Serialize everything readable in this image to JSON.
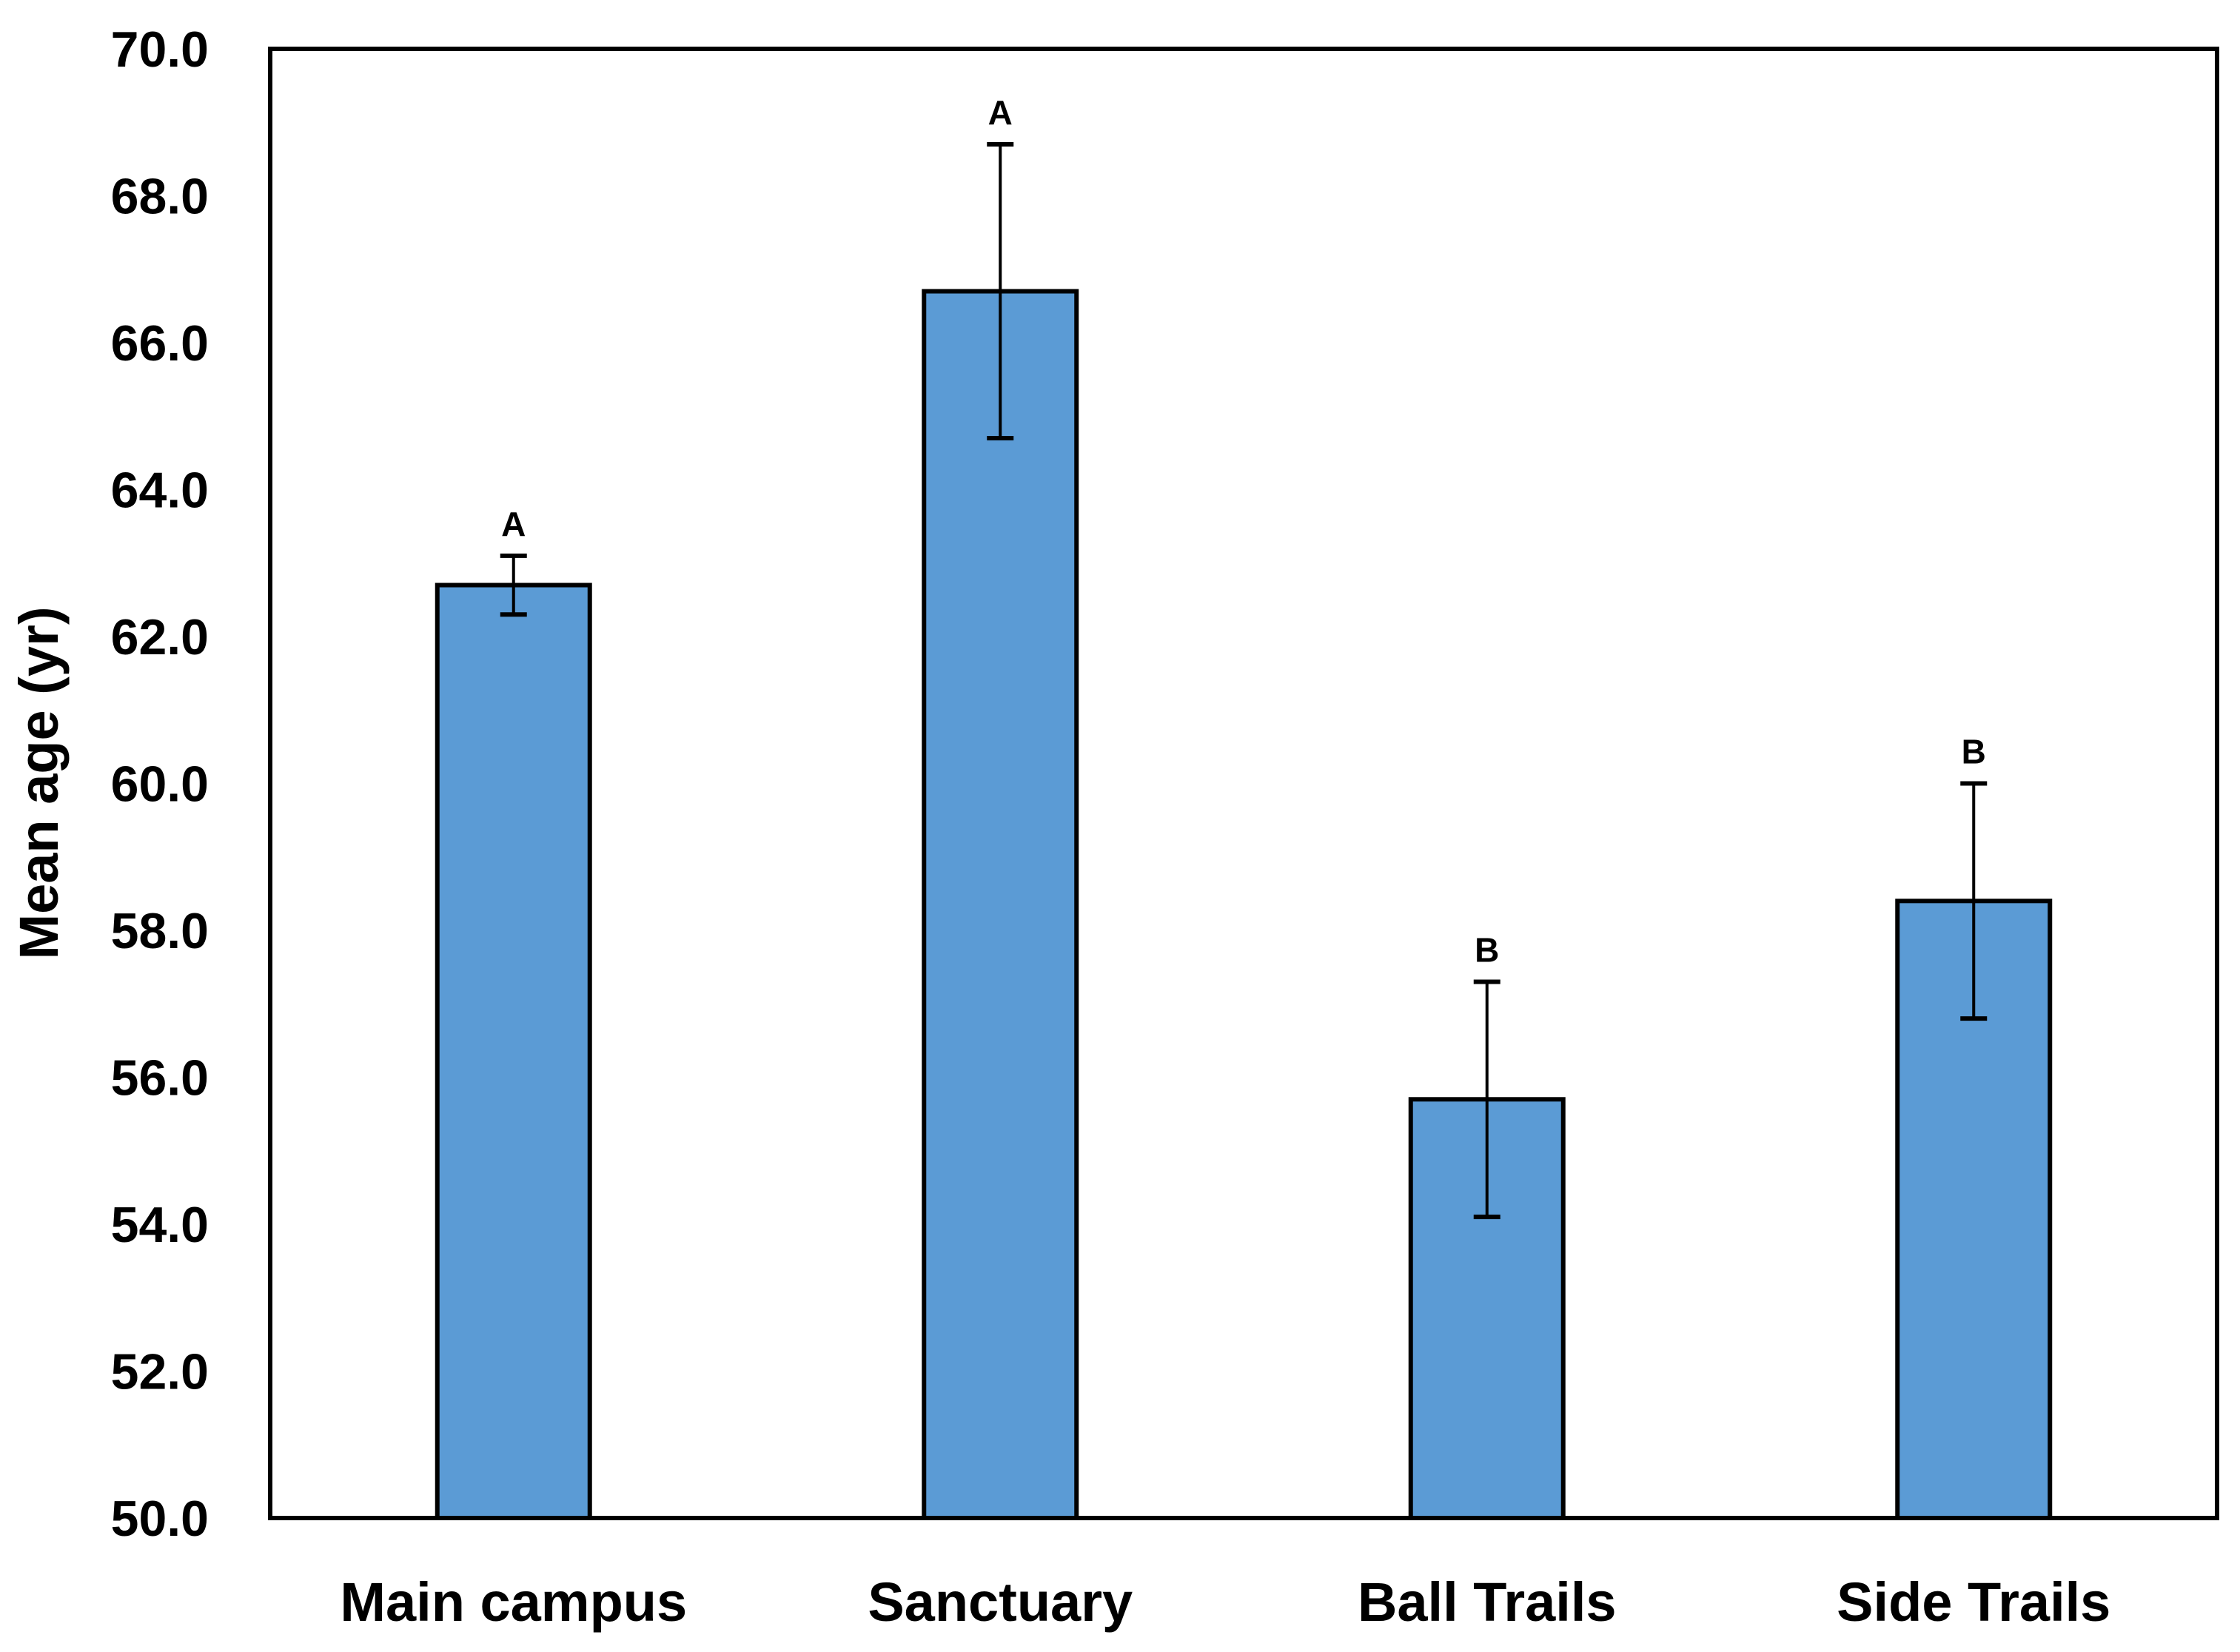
{
  "chart_data": {
    "type": "bar",
    "title": "",
    "xlabel": "",
    "ylabel": "Mean age  (yr)",
    "ylim": [
      50,
      70
    ],
    "yticks": [
      "50.0",
      "52.0",
      "54.0",
      "56.0",
      "58.0",
      "60.0",
      "62.0",
      "64.0",
      "66.0",
      "68.0",
      "70.0"
    ],
    "categories": [
      "Main campus",
      "Sanctuary",
      "Ball Trails",
      "Side Trails"
    ],
    "values": [
      62.7,
      66.7,
      55.7,
      58.4
    ],
    "error": [
      0.4,
      2.0,
      1.6,
      1.6
    ],
    "significance": [
      "A",
      "A",
      "B",
      "B"
    ],
    "grid": false,
    "legend": "none",
    "colors": {
      "bar_fill": "#5B9BD5",
      "bar_edge": "#000000",
      "axis": "#000000"
    }
  }
}
